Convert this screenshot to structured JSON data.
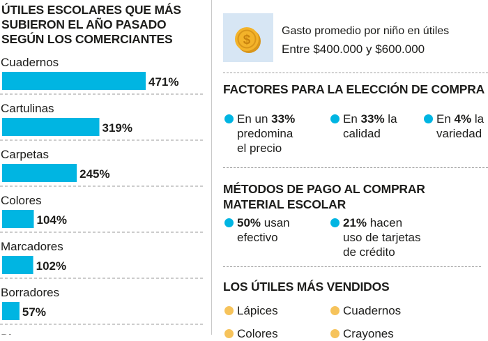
{
  "left_title": "ÚTILES ESCOLARES QUE MÁS SUBIERON EL AÑO PASADO SEGÚN LOS COMERCIANTES",
  "chart_data": {
    "type": "bar",
    "orientation": "horizontal",
    "title": "ÚTILES ESCOLARES QUE MÁS SUBIERON EL AÑO PASADO SEGÚN LOS COMERCIANTES",
    "categories": [
      "Cuadernos",
      "Cartulinas",
      "Carpetas",
      "Colores",
      "Marcadores",
      "Borradores",
      "Bl..."
    ],
    "values": [
      471,
      319,
      245,
      104,
      102,
      57,
      null
    ],
    "value_labels": [
      "471%",
      "319%",
      "245%",
      "104%",
      "102%",
      "57%",
      ""
    ],
    "unit": "%",
    "bar_color": "#00b5e2",
    "grid": false
  },
  "gasto": {
    "icon": "coin-dollar-icon",
    "label": "Gasto promedio por niño en útiles",
    "value": "Entre $400.000 y $600.000"
  },
  "factores": {
    "title": "FACTORES PARA LA ELECCIÓN DE COMPRA",
    "items": [
      {
        "pre": "En un ",
        "bold": "33%",
        "post": "\npredomina\nel precio"
      },
      {
        "pre": "En ",
        "bold": "33%",
        "post": " la\ncalidad"
      },
      {
        "pre": "En ",
        "bold": "4%",
        "post": " la\nvariedad"
      }
    ]
  },
  "metodos": {
    "title_line1": "MÉTODOS DE PAGO AL COMPRAR",
    "title_line2": "MATERIAL ESCOLAR",
    "items": [
      {
        "bold": "50%",
        "post": " usan\nefectivo"
      },
      {
        "bold": "21%",
        "post": " hacen\nuso de tarjetas\nde crédito"
      }
    ]
  },
  "vendidos": {
    "title": "LOS ÚTILES MÁS VENDIDOS",
    "items": [
      "Lápices",
      "Cuadernos",
      "Colores",
      "Crayones"
    ]
  },
  "colors": {
    "accent_blue": "#00b5e2",
    "accent_yellow": "#f6c35b",
    "coin_gold": "#f3b32a",
    "coin_box": "#d7e6f4"
  }
}
